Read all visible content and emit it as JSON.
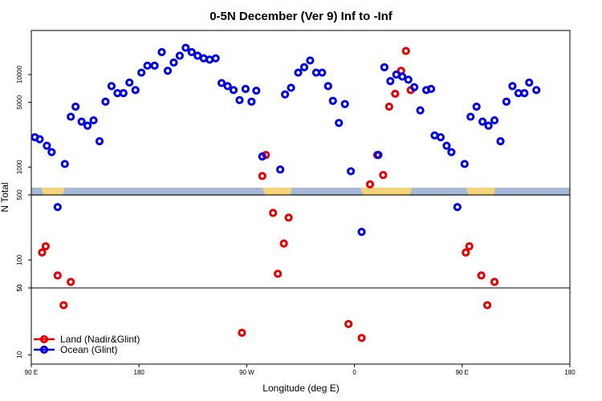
{
  "chart_data": {
    "type": "scatter",
    "title": "0-5N December (Ver 9)   Inf to -Inf",
    "xlabel": "Longitude (deg E)",
    "ylabel": "N Total",
    "x_ticks": [
      {
        "value": 90,
        "label": "90 E"
      },
      {
        "value": 180,
        "label": "180"
      },
      {
        "value": 270,
        "label": "90 W"
      },
      {
        "value": 360,
        "label": "0"
      },
      {
        "value": 450,
        "label": "90 E"
      },
      {
        "value": 540,
        "label": "180"
      }
    ],
    "xlim": [
      90,
      540
    ],
    "upper_panel": {
      "scale": "log",
      "ylim": [
        500,
        30000
      ],
      "y_ticks": [
        {
          "value": 1000,
          "label": "1000"
        },
        {
          "value": 5000,
          "label": "5000"
        },
        {
          "value": 10000,
          "label": "10000"
        }
      ]
    },
    "middle_panel": {
      "scale": "log",
      "ylim": [
        50,
        500
      ],
      "y_ticks": [
        {
          "value": 50,
          "label": "50"
        },
        {
          "value": 100,
          "label": "100"
        },
        {
          "value": 500,
          "label": "500"
        }
      ]
    },
    "lower_panel": {
      "scale": "log",
      "ylim": [
        8,
        50
      ],
      "y_ticks": [
        {
          "value": 10,
          "label": "10"
        },
        {
          "value": 50,
          "label": "50"
        }
      ]
    },
    "map_colors": {
      "ocean": "#a5b8d5",
      "land": "#f5d37a"
    },
    "land_spans": [
      [
        98,
        118
      ],
      [
        283,
        308
      ],
      [
        365,
        408
      ],
      [
        453,
        478
      ]
    ],
    "legend": {
      "position": "bottom-left"
    },
    "series": [
      {
        "name": "Land (Nadir&Glint)",
        "color": "#e60000",
        "points": [
          [
            99,
            120
          ],
          [
            102,
            140
          ],
          [
            112,
            68
          ],
          [
            117,
            33
          ],
          [
            123,
            58
          ],
          [
            266,
            17
          ],
          [
            283,
            800
          ],
          [
            286,
            1350
          ],
          [
            292,
            320
          ],
          [
            296,
            71
          ],
          [
            301,
            150
          ],
          [
            305,
            285
          ],
          [
            355,
            21
          ],
          [
            366,
            15
          ],
          [
            373,
            650
          ],
          [
            379,
            1350
          ],
          [
            384,
            820
          ],
          [
            389,
            4500
          ],
          [
            394,
            6200
          ],
          [
            399,
            11000
          ],
          [
            403,
            18000
          ],
          [
            407,
            6800
          ],
          [
            453,
            120
          ],
          [
            456,
            140
          ],
          [
            466,
            68
          ],
          [
            471,
            33
          ],
          [
            477,
            58
          ]
        ]
      },
      {
        "name": "Ocean (Glint)",
        "color": "#0000e6",
        "points": [
          [
            93,
            2100
          ],
          [
            97,
            2000
          ],
          [
            103,
            1700
          ],
          [
            107,
            1450
          ],
          [
            112,
            370
          ],
          [
            118,
            1080
          ],
          [
            123,
            3500
          ],
          [
            127,
            4500
          ],
          [
            132,
            3100
          ],
          [
            137,
            2800
          ],
          [
            142,
            3200
          ],
          [
            147,
            1900
          ],
          [
            152,
            5100
          ],
          [
            157,
            7500
          ],
          [
            162,
            6300
          ],
          [
            167,
            6300
          ],
          [
            172,
            8200
          ],
          [
            177,
            6800
          ],
          [
            182,
            10500
          ],
          [
            187,
            12500
          ],
          [
            193,
            12500
          ],
          [
            199,
            17500
          ],
          [
            204,
            11000
          ],
          [
            209,
            13500
          ],
          [
            214,
            16000
          ],
          [
            219,
            19500
          ],
          [
            224,
            17500
          ],
          [
            229,
            16000
          ],
          [
            234,
            15000
          ],
          [
            239,
            14500
          ],
          [
            244,
            15000
          ],
          [
            249,
            8100
          ],
          [
            254,
            7500
          ],
          [
            259,
            6800
          ],
          [
            264,
            5300
          ],
          [
            269,
            7000
          ],
          [
            274,
            5100
          ],
          [
            278,
            6700
          ],
          [
            283,
            1300
          ],
          [
            298,
            940
          ],
          [
            302,
            6100
          ],
          [
            307,
            7200
          ],
          [
            313,
            10500
          ],
          [
            318,
            12000
          ],
          [
            323,
            14200
          ],
          [
            328,
            10500
          ],
          [
            333,
            10500
          ],
          [
            338,
            7500
          ],
          [
            342,
            5200
          ],
          [
            347,
            3000
          ],
          [
            352,
            4800
          ],
          [
            357,
            900
          ],
          [
            366,
            200
          ],
          [
            380,
            1350
          ],
          [
            385,
            12000
          ],
          [
            390,
            8500
          ],
          [
            395,
            10000
          ],
          [
            400,
            9500
          ],
          [
            405,
            8800
          ],
          [
            410,
            7300
          ],
          [
            415,
            4100
          ],
          [
            420,
            6800
          ],
          [
            424,
            7000
          ],
          [
            427,
            2200
          ],
          [
            432,
            2100
          ],
          [
            437,
            1700
          ],
          [
            441,
            1450
          ],
          [
            446,
            370
          ],
          [
            452,
            1080
          ],
          [
            457,
            3500
          ],
          [
            462,
            4500
          ],
          [
            467,
            3100
          ],
          [
            472,
            2800
          ],
          [
            477,
            3200
          ],
          [
            482,
            1900
          ],
          [
            487,
            5100
          ],
          [
            492,
            7500
          ],
          [
            497,
            6300
          ],
          [
            502,
            6300
          ],
          [
            506,
            8200
          ],
          [
            512,
            6800
          ]
        ]
      }
    ]
  }
}
